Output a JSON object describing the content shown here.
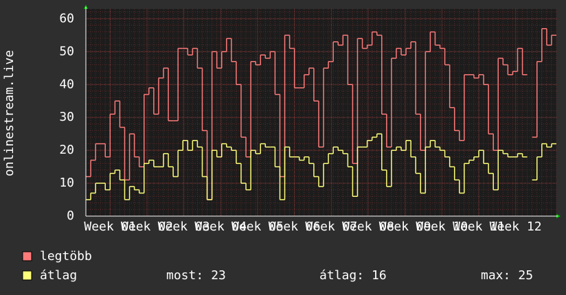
{
  "chart_data": {
    "type": "step-line",
    "y_label": "onlinestream.live",
    "xlim": [
      0,
      97
    ],
    "xticks": [
      {
        "value": 5,
        "label": "Week 01"
      },
      {
        "value": 12.6,
        "label": "Week 02"
      },
      {
        "value": 20.2,
        "label": "Week 03"
      },
      {
        "value": 27.8,
        "label": "Week 04"
      },
      {
        "value": 35.4,
        "label": "Week 05"
      },
      {
        "value": 43,
        "label": "Week 06"
      },
      {
        "value": 50.6,
        "label": "Week 07"
      },
      {
        "value": 58.2,
        "label": "Week 08"
      },
      {
        "value": 65.8,
        "label": "Week 09"
      },
      {
        "value": 73.4,
        "label": "Week 10"
      },
      {
        "value": 81,
        "label": "Week 11"
      },
      {
        "value": 88.6,
        "label": "Week 12"
      }
    ],
    "ylim": [
      0,
      63
    ],
    "yticks": [
      0,
      10,
      20,
      30,
      40,
      50,
      60
    ],
    "grid": true,
    "series": [
      {
        "name": "legtöbb",
        "color": "#ff7b7b",
        "values": [
          12,
          17,
          22,
          22,
          18,
          31,
          35,
          27,
          11,
          25,
          18,
          15,
          37,
          39,
          31,
          42,
          45,
          29,
          29,
          51,
          51,
          49,
          51,
          45,
          26,
          5,
          50,
          45,
          50,
          54,
          47,
          40,
          24,
          18,
          47,
          46,
          49,
          48,
          50,
          37,
          12,
          55,
          51,
          39,
          39,
          43,
          45,
          35,
          21,
          45,
          47,
          53,
          52,
          55,
          40,
          16,
          54,
          51,
          52,
          56,
          55,
          31,
          21,
          48,
          51,
          49,
          51,
          53,
          31,
          20,
          50,
          56,
          52,
          51,
          46,
          33,
          26,
          23,
          43,
          43,
          42,
          43,
          40,
          25,
          20,
          48,
          46,
          43,
          44,
          51,
          43,
          null,
          24,
          47,
          57,
          52,
          55
        ]
      },
      {
        "name": "átlag",
        "color": "#ffff7b",
        "values": [
          5,
          7,
          10,
          10,
          8,
          13,
          14,
          11,
          5,
          9,
          8,
          7,
          16,
          17,
          15,
          15,
          19,
          15,
          12,
          20,
          23,
          20,
          23,
          21,
          12,
          5,
          20,
          18,
          22,
          21,
          20,
          16,
          10,
          8,
          20,
          19,
          22,
          21,
          21,
          15,
          5,
          21,
          18,
          18,
          17,
          18,
          16,
          12,
          9,
          16,
          19,
          21,
          20,
          19,
          15,
          6,
          21,
          21,
          23,
          24,
          25,
          14,
          9,
          20,
          21,
          20,
          23,
          18,
          13,
          7,
          21,
          23,
          21,
          20,
          18,
          15,
          11,
          7,
          16,
          17,
          18,
          20,
          16,
          13,
          8,
          20,
          19,
          18,
          18,
          19,
          18,
          null,
          11,
          18,
          22,
          21,
          22
        ]
      }
    ],
    "stats": [
      {
        "label": "most:",
        "value": 23
      },
      {
        "label": "átlag:",
        "value": 16
      },
      {
        "label": "max:",
        "value": 25
      }
    ]
  }
}
